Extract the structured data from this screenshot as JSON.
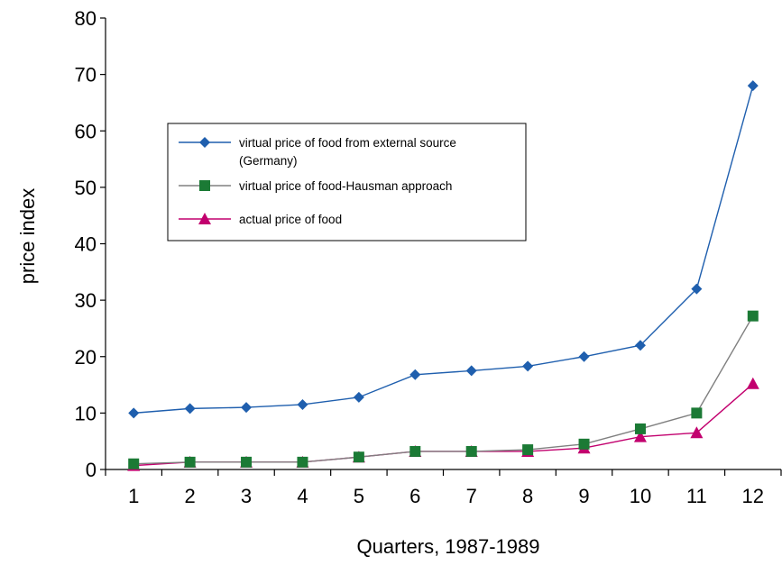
{
  "chart_data": {
    "type": "line",
    "title": "",
    "xlabel": "Quarters, 1987-1989",
    "ylabel": "price index",
    "categories": [
      "1",
      "2",
      "3",
      "4",
      "5",
      "6",
      "7",
      "8",
      "9",
      "10",
      "11",
      "12"
    ],
    "ylim": [
      0,
      80
    ],
    "yticks": [
      "0",
      "10",
      "20",
      "30",
      "40",
      "50",
      "60",
      "70",
      "80"
    ],
    "grid": false,
    "legend_position": "upper-left",
    "series": [
      {
        "name_lines": [
          "virtual price of food from external source",
          "(Germany)"
        ],
        "marker": "diamond",
        "color": "#1f5fae",
        "values": [
          10,
          10.8,
          11,
          11.5,
          12.8,
          16.8,
          17.5,
          18.3,
          20,
          22,
          32,
          68
        ]
      },
      {
        "name_lines": [
          "virtual price of food-Hausman approach"
        ],
        "marker": "square",
        "color": "#1b7a35",
        "line_color": "#808080",
        "values": [
          1,
          1.3,
          1.3,
          1.3,
          2.2,
          3.2,
          3.2,
          3.5,
          4.5,
          7.2,
          10,
          27.2
        ]
      },
      {
        "name_lines": [
          "actual price of food"
        ],
        "marker": "triangle",
        "color": "#c2006e",
        "values": [
          0.7,
          1.3,
          1.3,
          1.3,
          2.2,
          3.2,
          3.2,
          3.2,
          3.8,
          5.8,
          6.5,
          15.2
        ]
      }
    ]
  }
}
